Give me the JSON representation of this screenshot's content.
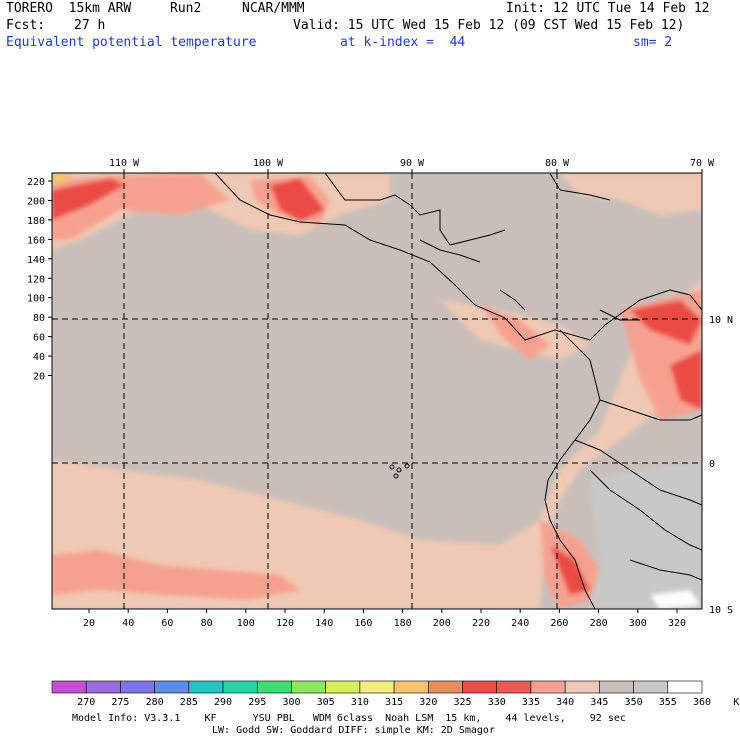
{
  "header": {
    "model": "TORERO  15km ARW",
    "run": "Run2",
    "org": "NCAR/MMM",
    "init": "Init: 12 UTC Tue 14 Feb 12",
    "fcst_label": "Fcst:",
    "fcst_value": "27 h",
    "valid": "Valid: 15 UTC Wed 15 Feb 12 (09 CST Wed 15 Feb 12)",
    "field": "Equivalent potential temperature",
    "level": "at k-index =  44",
    "smooth": "sm= 2"
  },
  "map": {
    "lon_labels": [
      "110 W",
      "100 W",
      "90 W",
      "80 W",
      "70 W"
    ],
    "lat_labels": [
      "10 N",
      "0",
      "10 S"
    ],
    "y_ticks": [
      "220",
      "200",
      "180",
      "160",
      "140",
      "120",
      "100",
      "80",
      "60",
      "40",
      "20"
    ],
    "x_ticks": [
      "20",
      "40",
      "60",
      "80",
      "100",
      "120",
      "140",
      "160",
      "180",
      "200",
      "220",
      "240",
      "260",
      "280",
      "300",
      "320"
    ],
    "colors": {
      "background_field": "#c9bfba",
      "grid": "#000000",
      "coast": "#000000"
    }
  },
  "colorbar": {
    "labels": [
      "270",
      "275",
      "280",
      "285",
      "290",
      "295",
      "300",
      "305",
      "310",
      "315",
      "320",
      "325",
      "330",
      "335",
      "340",
      "345",
      "350",
      "355",
      "360",
      "K"
    ],
    "colors": [
      "#c94fd0",
      "#9b6ee0",
      "#7d74ec",
      "#5a8df0",
      "#22c4c4",
      "#23d5a4",
      "#3fdc76",
      "#8ee65c",
      "#d6ef5e",
      "#f6ee7b",
      "#f6c46a",
      "#f08c5c",
      "#eb4c45",
      "#ee5a52",
      "#f6a18f",
      "#efc9b3",
      "#c9bfba",
      "#c8c8c8",
      "#fdfdfd"
    ]
  },
  "footer": {
    "line1": "Model Info: V3.3.1    KF      YSU PBL   WDM 6class  Noah LSM  15 km,    44 levels,    92 sec",
    "line2": "LW: Godd SW: Goddard DIFF: simple KM: 2D Smagor"
  }
}
